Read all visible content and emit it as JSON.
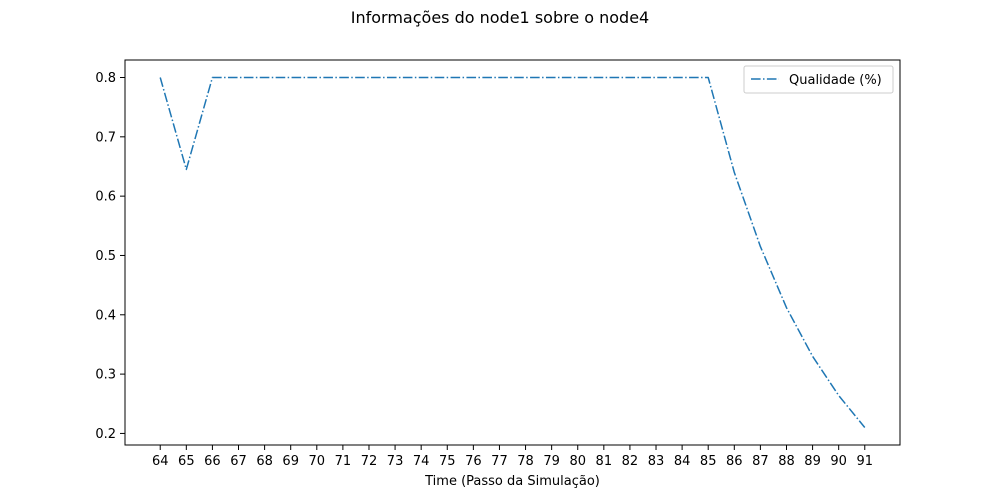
{
  "chart_data": {
    "type": "line",
    "title": "Informações do node1 sobre o node4",
    "xlabel": "Time (Passo da Simulação)",
    "ylabel": "",
    "x": [
      64,
      65,
      66,
      67,
      68,
      69,
      70,
      71,
      72,
      73,
      74,
      75,
      76,
      77,
      78,
      79,
      80,
      81,
      82,
      83,
      84,
      85,
      86,
      87,
      88,
      89,
      90,
      91
    ],
    "series": [
      {
        "name": "Qualidade (%)",
        "color": "#1f77b4",
        "line_style": "dashdot",
        "values": [
          0.8,
          0.645,
          0.8,
          0.8,
          0.8,
          0.8,
          0.8,
          0.8,
          0.8,
          0.8,
          0.8,
          0.8,
          0.8,
          0.8,
          0.8,
          0.8,
          0.8,
          0.8,
          0.8,
          0.8,
          0.8,
          0.8,
          0.64,
          0.515,
          0.412,
          0.33,
          0.264,
          0.21
        ]
      }
    ],
    "xticks": [
      "64",
      "65",
      "66",
      "67",
      "68",
      "69",
      "70",
      "71",
      "72",
      "73",
      "74",
      "75",
      "76",
      "77",
      "78",
      "79",
      "80",
      "81",
      "82",
      "83",
      "84",
      "85",
      "86",
      "87",
      "88",
      "89",
      "90",
      "91"
    ],
    "yticks": [
      0.2,
      0.3,
      0.4,
      0.5,
      0.6,
      0.7,
      0.8
    ],
    "ytick_labels": [
      "0.2",
      "0.3",
      "0.4",
      "0.5",
      "0.6",
      "0.7",
      "0.8"
    ],
    "xlim": [
      62.65,
      92.35
    ],
    "ylim": [
      0.1805,
      0.8295
    ],
    "grid": false,
    "legend_position": "top-right"
  }
}
